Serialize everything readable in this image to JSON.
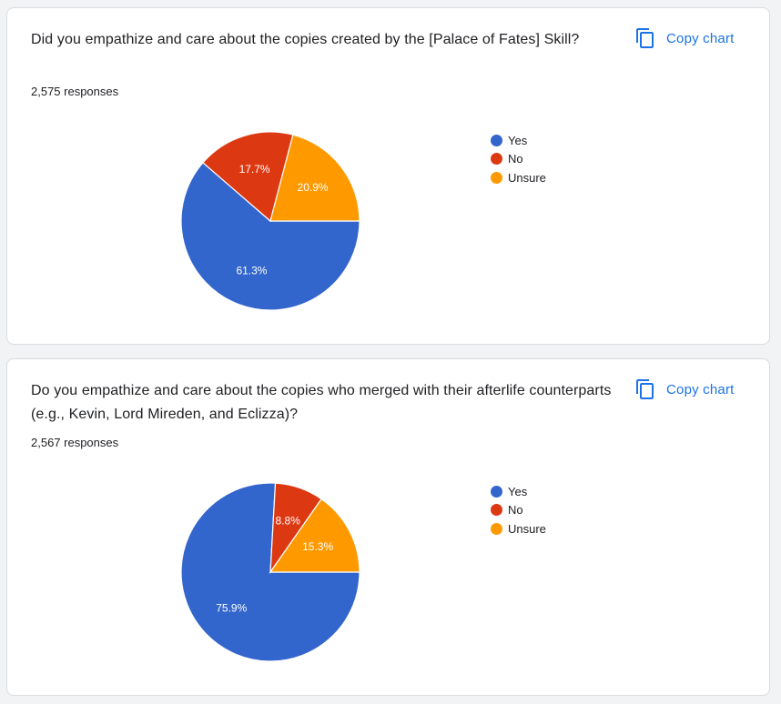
{
  "copy_chart_label": "Copy chart",
  "cards": [
    {
      "question": "Did you empathize and care about the copies created by the [Palace of Fates] Skill?",
      "responses": "2,575 responses"
    },
    {
      "question": "Do you empathize and care about the copies who merged with their afterlife counterparts (e.g., Kevin, Lord Mireden, and Eclizza)?",
      "responses": "2,567 responses"
    }
  ],
  "chart_data": [
    {
      "type": "pie",
      "categories": [
        "Yes",
        "No",
        "Unsure"
      ],
      "values": [
        61.3,
        17.7,
        20.9
      ],
      "labels": [
        "61.3%",
        "17.7%",
        "20.9%"
      ],
      "colors": [
        "#3366cc",
        "#dc3912",
        "#ff9900"
      ],
      "legend": "right"
    },
    {
      "type": "pie",
      "categories": [
        "Yes",
        "No",
        "Unsure"
      ],
      "values": [
        75.9,
        8.8,
        15.3
      ],
      "labels": [
        "75.9%",
        "8.8%",
        "15.3%"
      ],
      "colors": [
        "#3366cc",
        "#dc3912",
        "#ff9900"
      ],
      "legend": "right"
    }
  ]
}
